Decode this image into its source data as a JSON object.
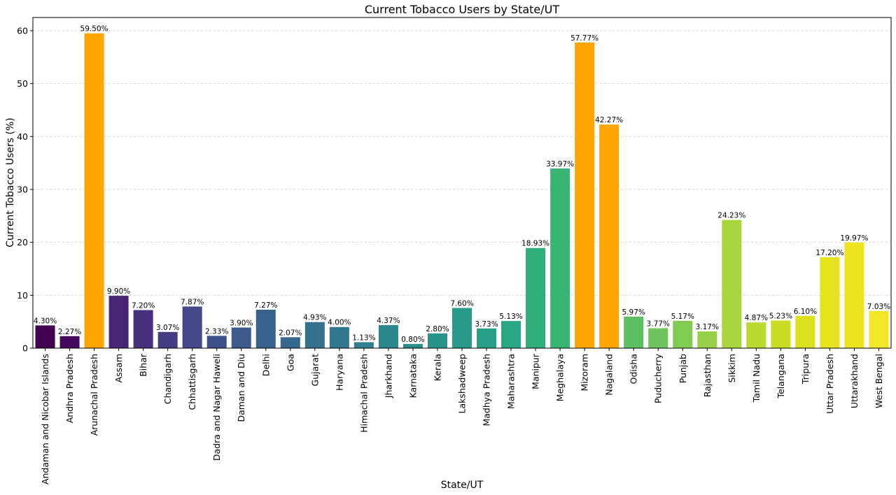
{
  "chart_data": {
    "type": "bar",
    "title": "Current Tobacco Users by State/UT",
    "xlabel": "State/UT",
    "ylabel": "Current Tobacco Users (%)",
    "ylim": [
      0,
      62.5
    ],
    "yticks": [
      0,
      10,
      20,
      30,
      40,
      50,
      60
    ],
    "grid": "y-dashed",
    "categories": [
      "Andaman and Nicobar Islands",
      "Andhra Pradesh",
      "Arunachal Pradesh",
      "Assam",
      "Bihar",
      "Chandigarh",
      "Chhattisgarh",
      "Dadra and Nagar Haweli",
      "Daman and Diu",
      "Delhi",
      "Goa",
      "Gujarat",
      "Haryana",
      "Himachal Pradesh",
      "Jharkhand",
      "Karnataka",
      "Kerala",
      "Lakshadweep",
      "Madhya Pradesh",
      "Maharashtra",
      "Manipur",
      "Meghalaya",
      "Mizoram",
      "Nagaland",
      "Odisha",
      "Puducherry",
      "Punjab",
      "Rajasthan",
      "Sikkim",
      "Tamil Nadu",
      "Telangana",
      "Tripura",
      "Uttar Pradesh",
      "Uttarakhand",
      "West Bengal"
    ],
    "values": [
      4.3,
      2.27,
      59.5,
      9.9,
      7.2,
      3.07,
      7.87,
      2.33,
      3.9,
      7.27,
      2.07,
      4.93,
      4.0,
      1.13,
      4.37,
      0.8,
      2.8,
      7.6,
      3.73,
      5.13,
      18.93,
      33.97,
      57.77,
      42.27,
      5.97,
      3.77,
      5.17,
      3.17,
      24.23,
      4.87,
      5.23,
      6.1,
      17.2,
      19.97,
      7.03
    ],
    "data_labels": [
      "4.30%",
      "2.27%",
      "59.50%",
      "9.90%",
      "7.20%",
      "3.07%",
      "7.87%",
      "2.33%",
      "3.90%",
      "7.27%",
      "2.07%",
      "4.93%",
      "4.00%",
      "1.13%",
      "4.37%",
      "0.80%",
      "2.80%",
      "7.60%",
      "3.73%",
      "5.13%",
      "18.93%",
      "33.97%",
      "57.77%",
      "42.27%",
      "5.97%",
      "3.77%",
      "5.17%",
      "3.17%",
      "24.23%",
      "4.87%",
      "5.23%",
      "6.10%",
      "17.20%",
      "19.97%",
      "7.03%"
    ],
    "colors": [
      "#440154",
      "#46085c",
      "#ffa500",
      "#482576",
      "#48307e",
      "#453d82",
      "#424986",
      "#3f4f89",
      "#3c5a8b",
      "#38628c",
      "#36698d",
      "#34718e",
      "#31788e",
      "#2f7f8e",
      "#2c868d",
      "#2a8d8c",
      "#28938b",
      "#279a89",
      "#26a085",
      "#28a782",
      "#2fae7c",
      "#3ab475",
      "#ffa500",
      "#ffa500",
      "#5cbf62",
      "#6fc55b",
      "#81cb52",
      "#94d147",
      "#a7d53b",
      "#b9da2e",
      "#cadd22",
      "#dae01d",
      "#e6e21d",
      "#eee51f",
      "#f3e626"
    ],
    "highlight_color": "#ffa500"
  }
}
